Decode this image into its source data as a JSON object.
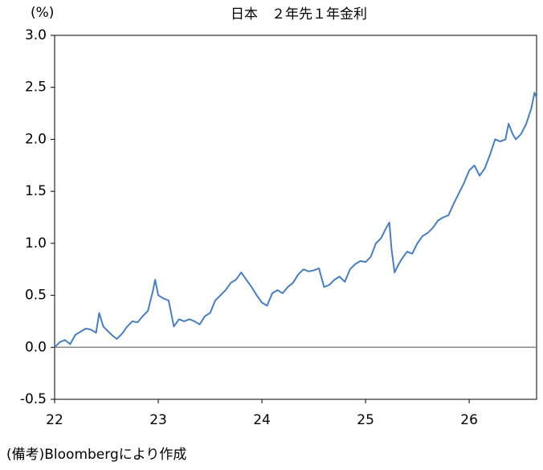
{
  "chart_data": {
    "type": "line",
    "title": "日本　２年先１年金利",
    "unit": "(%)",
    "source": "(備考)Bloombergにより作成",
    "color": "#4a7ebb",
    "x": [
      22.0,
      22.05,
      22.1,
      22.15,
      22.2,
      22.25,
      22.3,
      22.35,
      22.4,
      22.43,
      22.47,
      22.5,
      22.55,
      22.6,
      22.65,
      22.7,
      22.75,
      22.8,
      22.85,
      22.9,
      22.95,
      22.97,
      23.0,
      23.05,
      23.1,
      23.15,
      23.2,
      23.25,
      23.3,
      23.35,
      23.4,
      23.45,
      23.5,
      23.55,
      23.6,
      23.65,
      23.7,
      23.75,
      23.8,
      23.85,
      23.9,
      23.95,
      24.0,
      24.05,
      24.1,
      24.15,
      24.2,
      24.25,
      24.3,
      24.35,
      24.4,
      24.45,
      24.5,
      24.55,
      24.6,
      24.65,
      24.7,
      24.75,
      24.8,
      24.85,
      24.9,
      24.95,
      25.0,
      25.05,
      25.1,
      25.15,
      25.2,
      25.23,
      25.25,
      25.28,
      25.32,
      25.35,
      25.4,
      25.45,
      25.5,
      25.55,
      25.6,
      25.65,
      25.7,
      25.75,
      25.8,
      25.85,
      25.9,
      25.95,
      26.0,
      26.05,
      26.1,
      26.15,
      26.2,
      26.25,
      26.3,
      26.35,
      26.38,
      26.42,
      26.45,
      26.5,
      26.55,
      26.6,
      26.63,
      26.65
    ],
    "values": [
      0.0,
      0.05,
      0.07,
      0.03,
      0.12,
      0.15,
      0.18,
      0.17,
      0.14,
      0.33,
      0.2,
      0.17,
      0.12,
      0.08,
      0.13,
      0.2,
      0.25,
      0.24,
      0.3,
      0.35,
      0.55,
      0.65,
      0.5,
      0.47,
      0.45,
      0.2,
      0.27,
      0.25,
      0.27,
      0.25,
      0.22,
      0.3,
      0.33,
      0.45,
      0.5,
      0.55,
      0.62,
      0.65,
      0.72,
      0.65,
      0.58,
      0.5,
      0.43,
      0.4,
      0.52,
      0.55,
      0.52,
      0.58,
      0.62,
      0.7,
      0.75,
      0.73,
      0.74,
      0.76,
      0.58,
      0.6,
      0.65,
      0.68,
      0.63,
      0.75,
      0.8,
      0.83,
      0.82,
      0.87,
      1.0,
      1.05,
      1.15,
      1.2,
      0.95,
      0.72,
      0.8,
      0.85,
      0.92,
      0.9,
      1.0,
      1.07,
      1.1,
      1.15,
      1.22,
      1.25,
      1.27,
      1.38,
      1.48,
      1.58,
      1.7,
      1.75,
      1.65,
      1.72,
      1.85,
      2.0,
      1.98,
      2.0,
      2.15,
      2.05,
      2.0,
      2.05,
      2.15,
      2.3,
      2.45,
      2.4
    ],
    "xlim": [
      22,
      26.65
    ],
    "xticks": [
      22,
      23,
      24,
      25,
      26
    ],
    "ylim": [
      -0.5,
      3.0
    ],
    "yticks": [
      {
        "value": -0.5,
        "label": "-0.5"
      },
      {
        "value": 0,
        "label": "0.0"
      },
      {
        "value": 0.5,
        "label": "0.5"
      },
      {
        "value": 1,
        "label": "1.0"
      },
      {
        "value": 1.5,
        "label": "1.5"
      },
      {
        "value": 2,
        "label": "2.0"
      },
      {
        "value": 2.5,
        "label": "2.5"
      },
      {
        "value": 3,
        "label": "3.0"
      }
    ],
    "grid": false
  }
}
